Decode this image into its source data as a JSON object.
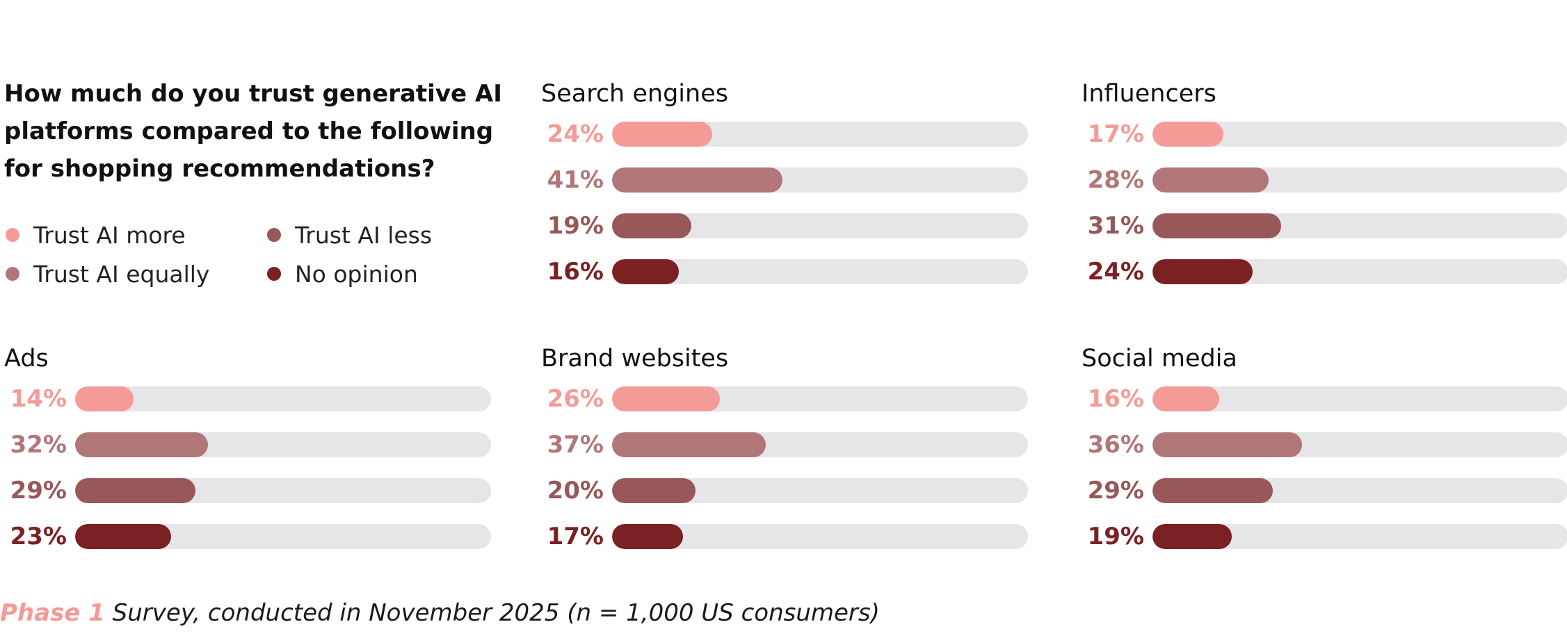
{
  "question": "How much do you trust generative AI platforms compared to the following for shopping recommendations?",
  "legend": [
    {
      "label": "Trust AI more",
      "color": "#f49b98"
    },
    {
      "label": "Trust AI equally",
      "color": "#b17778"
    },
    {
      "label": "Trust AI less",
      "color": "#985758"
    },
    {
      "label": "No opinion",
      "color": "#7b2023"
    }
  ],
  "footnote": {
    "phase": "Phase 1",
    "phase_color": "#f49b98",
    "text": " Survey, conducted in November 2025 (n = 1,000 US consumers)"
  },
  "chart_data": [
    {
      "type": "bar",
      "title": "Search engines",
      "series": [
        "Trust AI more",
        "Trust AI equally",
        "Trust AI less",
        "No opinion"
      ],
      "values": [
        24,
        41,
        19,
        16
      ],
      "labels": [
        "24%",
        "41%",
        "19%",
        "16%"
      ],
      "xlim": [
        0,
        100
      ]
    },
    {
      "type": "bar",
      "title": "Influencers",
      "series": [
        "Trust AI more",
        "Trust AI equally",
        "Trust AI less",
        "No opinion"
      ],
      "values": [
        17,
        28,
        31,
        24
      ],
      "labels": [
        "17%",
        "28%",
        "31%",
        "24%"
      ],
      "xlim": [
        0,
        100
      ]
    },
    {
      "type": "bar",
      "title": "Ads",
      "series": [
        "Trust AI more",
        "Trust AI equally",
        "Trust AI less",
        "No opinion"
      ],
      "values": [
        14,
        32,
        29,
        23
      ],
      "labels": [
        "14%",
        "32%",
        "29%",
        "23%"
      ],
      "xlim": [
        0,
        100
      ]
    },
    {
      "type": "bar",
      "title": "Brand websites",
      "series": [
        "Trust AI more",
        "Trust AI equally",
        "Trust AI less",
        "No opinion"
      ],
      "values": [
        26,
        37,
        20,
        17
      ],
      "labels": [
        "26%",
        "37%",
        "20%",
        "17%"
      ],
      "xlim": [
        0,
        100
      ]
    },
    {
      "type": "bar",
      "title": "Social media",
      "series": [
        "Trust AI more",
        "Trust AI equally",
        "Trust AI less",
        "No opinion"
      ],
      "values": [
        16,
        36,
        29,
        19
      ],
      "labels": [
        "16%",
        "36%",
        "29%",
        "19%"
      ],
      "xlim": [
        0,
        100
      ]
    }
  ]
}
